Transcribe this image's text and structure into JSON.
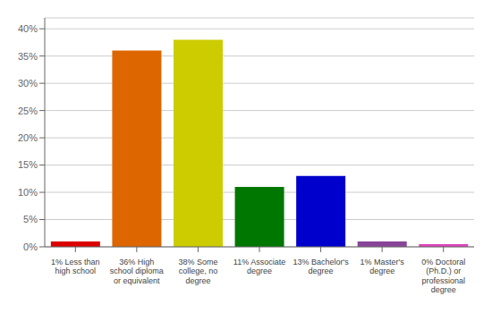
{
  "chart_data": {
    "type": "bar",
    "categories": [
      "1% Less than\nhigh school",
      "36% High\nschool diploma\nor equivalent",
      "38% Some\ncollege, no\ndegree",
      "11% Associate\ndegree",
      "13% Bachelor's\ndegree",
      "1% Master's\ndegree",
      "0% Doctoral\n(Ph.D.) or\nprofessional\ndegree"
    ],
    "values": [
      1,
      36,
      38,
      11,
      13,
      1,
      0.5
    ],
    "colors": [
      "#dd0000",
      "#dd6600",
      "#cccc00",
      "#007700",
      "#0000cc",
      "#884499",
      "#dd44bb"
    ],
    "ylim": [
      0,
      42
    ],
    "yticks": [
      {
        "value": 0,
        "label": "0%"
      },
      {
        "value": 5,
        "label": "5%"
      },
      {
        "value": 10,
        "label": "10%"
      },
      {
        "value": 15,
        "label": "15%"
      },
      {
        "value": 20,
        "label": "20%"
      },
      {
        "value": 25,
        "label": "25%"
      },
      {
        "value": 30,
        "label": "30%"
      },
      {
        "value": 35,
        "label": "35%"
      },
      {
        "value": 40,
        "label": "40%"
      }
    ],
    "grid": true
  }
}
